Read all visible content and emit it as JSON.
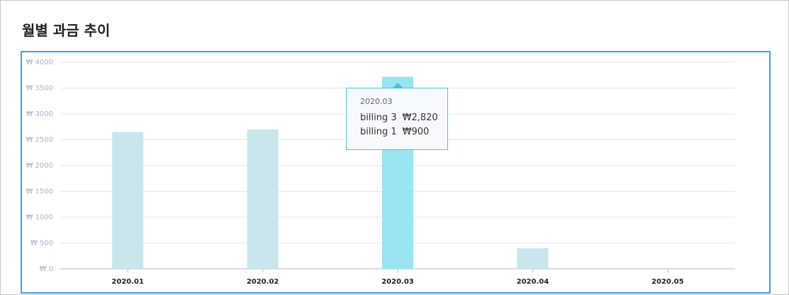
{
  "header": {
    "title": "월별 과금 추이"
  },
  "chart_data": {
    "type": "bar",
    "categories": [
      "2020.01",
      "2020.02",
      "2020.03",
      "2020.04",
      "2020.05"
    ],
    "values": [
      2650,
      2700,
      3720,
      400,
      0
    ],
    "color": "#c9e6ec",
    "active_color": "#99e4f1",
    "ylim": [
      0,
      4000
    ],
    "yticks": [
      {
        "value": 0,
        "label": "₩ 0"
      },
      {
        "value": 500,
        "label": "₩ 500"
      },
      {
        "value": 1000,
        "label": "₩ 1000"
      },
      {
        "value": 1500,
        "label": "₩ 1500"
      },
      {
        "value": 2000,
        "label": "₩ 2000"
      },
      {
        "value": 2500,
        "label": "₩ 2500"
      },
      {
        "value": 3000,
        "label": "₩ 3000"
      },
      {
        "value": 3500,
        "label": "₩ 3500"
      },
      {
        "value": 4000,
        "label": "₩ 4000"
      }
    ],
    "grid": true,
    "tooltip": {
      "title": "2020.03",
      "items": [
        {
          "name": "billing 3",
          "value": 2820,
          "label": "₩2,820"
        },
        {
          "name": "billing 1",
          "value": 900,
          "label": "₩900"
        }
      ]
    }
  }
}
